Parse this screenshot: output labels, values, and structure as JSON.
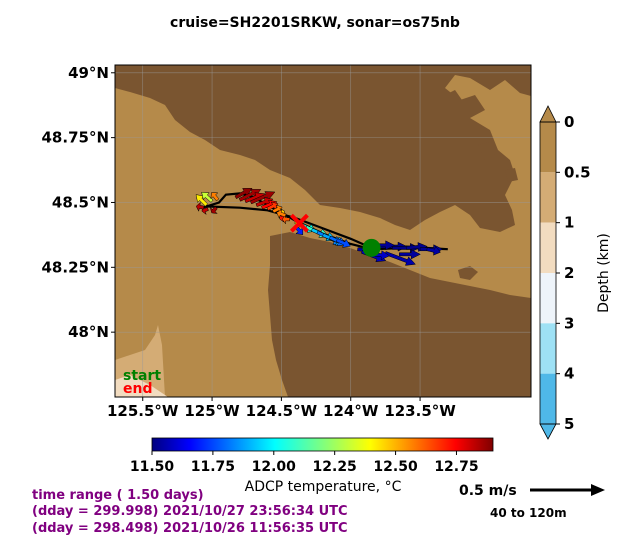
{
  "chart_data": {
    "type": "quiver-map",
    "title": "cruise=SH2201SRKW,   sonar=os75nb",
    "x_ticks": [
      "125.5°W",
      "125°W",
      "124.5°W",
      "124°W",
      "123.5°W"
    ],
    "x_tick_values": [
      -125.5,
      -125.0,
      -124.5,
      -124.0,
      -123.5
    ],
    "y_ticks": [
      "49°N",
      "48.75°N",
      "48.5°N",
      "48.25°N",
      "48°N"
    ],
    "y_tick_values": [
      49.0,
      48.75,
      48.5,
      48.25,
      48.0
    ],
    "xlim": [
      -125.7,
      -122.7
    ],
    "ylim": [
      47.75,
      49.03
    ],
    "depth_colorbar": {
      "label": "Depth (km)",
      "ticks": [
        "0",
        "0.5",
        "1",
        "2",
        "3",
        "4",
        "5"
      ],
      "colors": [
        "#b58a4a",
        "#d4ac75",
        "#f2dcc0",
        "#eef4fa",
        "#9ee1f5",
        "#4fb8e8"
      ]
    },
    "temperature_colorbar": {
      "label": "ADCP temperature, °C",
      "ticks": [
        "11.50",
        "11.75",
        "12.00",
        "12.25",
        "12.50",
        "12.75"
      ],
      "tick_values": [
        11.5,
        11.75,
        12.0,
        12.25,
        12.5,
        12.75
      ],
      "range": [
        11.5,
        12.9
      ]
    },
    "track": [
      [
        -125.07,
        48.48
      ],
      [
        -124.95,
        48.5
      ],
      [
        -124.9,
        48.53
      ],
      [
        -124.8,
        48.535
      ],
      [
        -124.7,
        48.52
      ],
      [
        -124.6,
        48.49
      ],
      [
        -124.5,
        48.46
      ],
      [
        -124.4,
        48.43
      ],
      [
        -124.2,
        48.38
      ],
      [
        -124.0,
        48.34
      ],
      [
        -123.85,
        48.32
      ],
      [
        -123.6,
        48.325
      ],
      [
        -123.3,
        48.32
      ],
      [
        -123.6,
        48.33
      ],
      [
        -123.85,
        48.325
      ],
      [
        -124.0,
        48.36
      ],
      [
        -124.2,
        48.4
      ],
      [
        -124.4,
        48.44
      ],
      [
        -124.6,
        48.47
      ],
      [
        -124.8,
        48.48
      ],
      [
        -125.05,
        48.485
      ]
    ],
    "start": [
      -123.85,
      48.325
    ],
    "end": [
      -124.37,
      48.42
    ],
    "vectors": [
      {
        "lon": -124.83,
        "lat": 48.52,
        "u": 0.11,
        "v": 0.06,
        "temp": 12.88
      },
      {
        "lon": -124.8,
        "lat": 48.51,
        "u": 0.14,
        "v": 0.07,
        "temp": 12.85
      },
      {
        "lon": -124.76,
        "lat": 48.505,
        "u": 0.13,
        "v": 0.05,
        "temp": 12.8
      },
      {
        "lon": -124.72,
        "lat": 48.5,
        "u": 0.16,
        "v": 0.07,
        "temp": 12.86
      },
      {
        "lon": -124.68,
        "lat": 48.49,
        "u": 0.11,
        "v": 0.04,
        "temp": 12.8
      },
      {
        "lon": -124.64,
        "lat": 48.48,
        "u": 0.1,
        "v": 0.04,
        "temp": 12.72
      },
      {
        "lon": -124.6,
        "lat": 48.475,
        "u": 0.07,
        "v": 0.035,
        "temp": 12.65
      },
      {
        "lon": -124.56,
        "lat": 48.465,
        "u": 0.06,
        "v": 0.03,
        "temp": 12.55
      },
      {
        "lon": -124.52,
        "lat": 48.455,
        "u": 0.04,
        "v": 0.02,
        "temp": 12.45
      },
      {
        "lon": -124.48,
        "lat": 48.445,
        "u": -0.03,
        "v": -0.015,
        "temp": 12.7
      },
      {
        "lon": -124.44,
        "lat": 48.435,
        "u": -0.05,
        "v": 0.0,
        "temp": 12.6
      },
      {
        "lon": -124.4,
        "lat": 48.425,
        "u": 0.05,
        "v": -0.02,
        "temp": 12.4
      },
      {
        "lon": -124.36,
        "lat": 48.415,
        "u": 0.1,
        "v": -0.045,
        "temp": 12.05
      },
      {
        "lon": -124.32,
        "lat": 48.405,
        "u": 0.15,
        "v": -0.065,
        "temp": 12.1
      },
      {
        "lon": -124.28,
        "lat": 48.395,
        "u": 0.16,
        "v": -0.07,
        "temp": 11.95
      },
      {
        "lon": -124.24,
        "lat": 48.385,
        "u": 0.17,
        "v": -0.08,
        "temp": 11.85
      },
      {
        "lon": -124.2,
        "lat": 48.375,
        "u": 0.15,
        "v": -0.065,
        "temp": 11.9
      },
      {
        "lon": -124.15,
        "lat": 48.365,
        "u": 0.11,
        "v": -0.05,
        "temp": 11.82
      },
      {
        "lon": -124.1,
        "lat": 48.355,
        "u": 0.09,
        "v": -0.04,
        "temp": 11.78
      },
      {
        "lon": -124.4,
        "lat": 48.41,
        "u": 0.05,
        "v": -0.06,
        "temp": 11.72
      },
      {
        "lon": -124.47,
        "lat": 48.45,
        "u": -0.06,
        "v": 0.02,
        "temp": 12.55
      },
      {
        "lon": -125.04,
        "lat": 48.49,
        "u": -0.07,
        "v": 0.07,
        "temp": 12.4
      },
      {
        "lon": -125.0,
        "lat": 48.505,
        "u": -0.07,
        "v": 0.06,
        "temp": 12.3
      },
      {
        "lon": -124.96,
        "lat": 48.51,
        "u": -0.04,
        "v": 0.05,
        "temp": 12.55
      },
      {
        "lon": -124.97,
        "lat": 48.48,
        "u": -0.03,
        "v": -0.035,
        "temp": 12.85
      },
      {
        "lon": -125.03,
        "lat": 48.475,
        "u": -0.04,
        "v": -0.015,
        "temp": 12.8
      },
      {
        "lon": -125.06,
        "lat": 48.48,
        "u": -0.05,
        "v": 0.01,
        "temp": 12.82
      },
      {
        "lon": -123.95,
        "lat": 48.32,
        "u": 0.14,
        "v": -0.02,
        "temp": 11.55
      },
      {
        "lon": -123.92,
        "lat": 48.31,
        "u": 0.16,
        "v": -0.06,
        "temp": 11.58
      },
      {
        "lon": -123.8,
        "lat": 48.33,
        "u": 0.19,
        "v": -0.0,
        "temp": 11.52
      },
      {
        "lon": -123.7,
        "lat": 48.325,
        "u": 0.18,
        "v": 0.0,
        "temp": 11.51
      },
      {
        "lon": -123.6,
        "lat": 48.325,
        "u": 0.14,
        "v": 0.01,
        "temp": 11.52
      },
      {
        "lon": -123.5,
        "lat": 48.32,
        "u": 0.15,
        "v": 0.0,
        "temp": 11.53
      },
      {
        "lon": -123.45,
        "lat": 48.32,
        "u": 0.09,
        "v": -0.02,
        "temp": 11.55
      },
      {
        "lon": -123.75,
        "lat": 48.305,
        "u": 0.2,
        "v": -0.075,
        "temp": 11.56
      },
      {
        "lon": -123.65,
        "lat": 48.3,
        "u": 0.14,
        "v": 0.0,
        "temp": 11.54
      },
      {
        "lon": -123.85,
        "lat": 48.3,
        "u": 0.12,
        "v": -0.01,
        "temp": 11.6
      },
      {
        "lon": -123.9,
        "lat": 48.335,
        "u": 0.2,
        "v": 0.0,
        "temp": 11.53
      }
    ],
    "scale": {
      "label": "0.5 m/s",
      "value": 0.5
    },
    "depth_range_label": "40 to 120m",
    "info_lines": [
      "time range ( 1.50 days)",
      "(dday = 299.998) 2021/10/27 23:56:34 UTC",
      "(dday = 298.498) 2021/10/26 11:56:35 UTC"
    ],
    "legend_markers": {
      "start": "start",
      "end": "end"
    },
    "colors": {
      "ocean": "#b58a4a",
      "land": "#7a5530",
      "track": "#000000",
      "start": "#008000",
      "end": "#ff0000",
      "info": "#800080"
    }
  }
}
